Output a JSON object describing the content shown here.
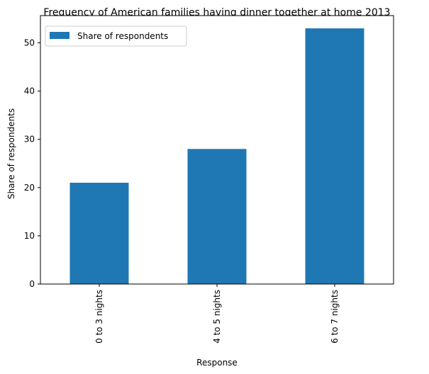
{
  "chart_data": {
    "type": "bar",
    "title": "Frequency of American families having dinner together at home 2013",
    "xlabel": "Response",
    "ylabel": "Share of respondents",
    "categories": [
      "0 to 3 nights",
      "4 to 5 nights",
      "6 to 7 nights"
    ],
    "series": [
      {
        "name": "Share of respondents",
        "values": [
          21,
          28,
          53
        ],
        "color": "#1f77b4"
      }
    ],
    "ylim": [
      0,
      55.65
    ],
    "yticks": [
      0,
      10,
      20,
      30,
      40,
      50
    ],
    "grid": false,
    "legend": "top-left"
  }
}
